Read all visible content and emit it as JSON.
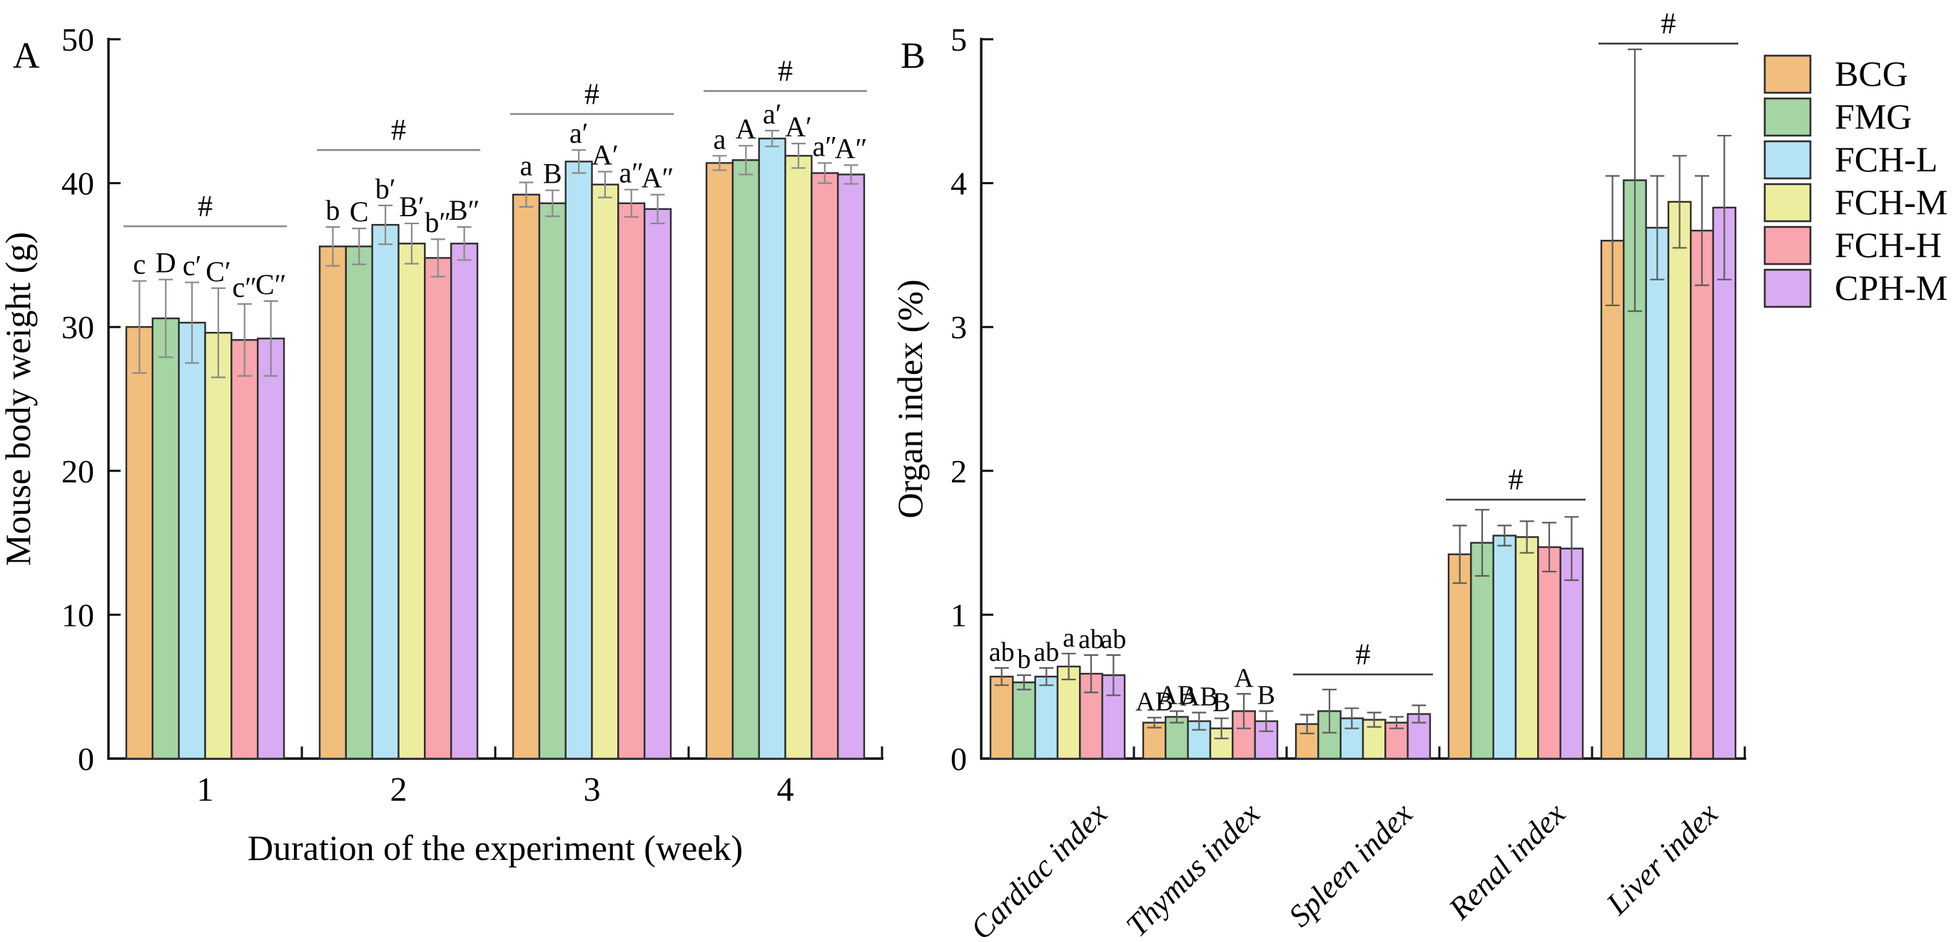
{
  "figure": {
    "background": "#ffffff",
    "description": "Two-panel bar figure: mouse body weight over time and organ indices for six treatment groups"
  },
  "palette": {
    "bar_edge": "#2e2e2e",
    "axis": "#111111",
    "error_bar_panel_a": "#8a8a8a",
    "error_bar_panel_b": "#5c5c5c",
    "bracket_panel_a": "#8c8c8c",
    "bracket_panel_b": "#3c3c3c",
    "text": "#000000"
  },
  "legend": {
    "entries": [
      {
        "label": "BCG",
        "color": "#F2BE7D"
      },
      {
        "label": "FMG",
        "color": "#A5D4A5"
      },
      {
        "label": "FCH-L",
        "color": "#B5E3F6"
      },
      {
        "label": "FCH-M",
        "color": "#EDEDA0"
      },
      {
        "label": "FCH-H",
        "color": "#F8A5AE"
      },
      {
        "label": "CPH-M",
        "color": "#D9ABF2"
      }
    ]
  },
  "chart_data": [
    {
      "id": "panel-a",
      "type": "bar",
      "panel_label": "A",
      "title": "",
      "xlabel": "Duration of the experiment (week)",
      "ylabel": "Mouse body weight (g)",
      "ylim": [
        0,
        50
      ],
      "yticks": [
        0,
        10,
        20,
        30,
        40,
        50
      ],
      "grid": false,
      "legend_position": "outside-right",
      "categories": [
        "1",
        "2",
        "3",
        "4"
      ],
      "category_style": "horizontal",
      "series": [
        {
          "name": "BCG",
          "values": [
            30.0,
            35.6,
            39.2,
            41.4
          ],
          "errors": [
            3.2,
            1.35,
            0.85,
            0.5
          ],
          "sig_labels": [
            "c",
            "b",
            "a",
            "a"
          ]
        },
        {
          "name": "FMG",
          "values": [
            30.6,
            35.6,
            38.6,
            41.6
          ],
          "errors": [
            2.7,
            1.25,
            0.9,
            1.0
          ],
          "sig_labels": [
            "D",
            "C",
            "B",
            "A"
          ]
        },
        {
          "name": "FCH-L",
          "values": [
            30.3,
            37.1,
            41.5,
            43.1
          ],
          "errors": [
            2.8,
            1.35,
            0.8,
            0.55
          ],
          "sig_labels": [
            "c′",
            "b′",
            "a′",
            "a′"
          ]
        },
        {
          "name": "FCH-M",
          "values": [
            29.6,
            35.8,
            39.9,
            41.9
          ],
          "errors": [
            3.1,
            1.4,
            0.9,
            0.85
          ],
          "sig_labels": [
            "C′",
            "B′",
            "A′",
            "A′"
          ]
        },
        {
          "name": "FCH-H",
          "values": [
            29.1,
            34.8,
            38.6,
            40.7
          ],
          "errors": [
            2.5,
            1.3,
            0.95,
            0.7
          ],
          "sig_labels": [
            "c″",
            "b″",
            "a″",
            "a″"
          ]
        },
        {
          "name": "CPH-M",
          "values": [
            29.2,
            35.8,
            38.2,
            40.6
          ],
          "errors": [
            2.6,
            1.15,
            1.0,
            0.65
          ],
          "sig_labels": [
            "C″",
            "B″",
            "A″",
            "A″"
          ]
        }
      ],
      "significance_brackets": [
        {
          "group": 0,
          "y": 37.0,
          "label": "#"
        },
        {
          "group": 1,
          "y": 42.3,
          "label": "#"
        },
        {
          "group": 2,
          "y": 44.8,
          "label": "#"
        },
        {
          "group": 3,
          "y": 46.4,
          "label": "#"
        }
      ]
    },
    {
      "id": "panel-b",
      "type": "bar",
      "panel_label": "B",
      "title": "",
      "xlabel": "",
      "ylabel": "Organ index (%)",
      "ylim": [
        0,
        5
      ],
      "yticks": [
        0,
        1,
        2,
        3,
        4,
        5
      ],
      "grid": false,
      "legend_position": "outside-right",
      "categories": [
        "Cardiac index",
        "Thymus index",
        "Spleen index",
        "Renal index",
        "Liver index"
      ],
      "category_style": "rotated-italic",
      "series": [
        {
          "name": "BCG",
          "values": [
            0.57,
            0.25,
            0.24,
            1.42,
            3.6
          ],
          "errors": [
            0.06,
            0.035,
            0.065,
            0.2,
            0.45
          ],
          "sig_labels": [
            "ab",
            "AB",
            "",
            "",
            ""
          ]
        },
        {
          "name": "FMG",
          "values": [
            0.53,
            0.29,
            0.33,
            1.5,
            4.02
          ],
          "errors": [
            0.05,
            0.04,
            0.15,
            0.23,
            0.91
          ],
          "sig_labels": [
            "b",
            "AB",
            "",
            "",
            ""
          ]
        },
        {
          "name": "FCH-L",
          "values": [
            0.57,
            0.26,
            0.28,
            1.55,
            3.69
          ],
          "errors": [
            0.06,
            0.06,
            0.07,
            0.07,
            0.36
          ],
          "sig_labels": [
            "ab",
            "AB",
            "",
            "",
            ""
          ]
        },
        {
          "name": "FCH-M",
          "values": [
            0.64,
            0.21,
            0.27,
            1.54,
            3.87
          ],
          "errors": [
            0.09,
            0.07,
            0.05,
            0.11,
            0.32
          ],
          "sig_labels": [
            "a",
            "B",
            "",
            "",
            ""
          ]
        },
        {
          "name": "FCH-H",
          "values": [
            0.59,
            0.33,
            0.25,
            1.47,
            3.67
          ],
          "errors": [
            0.13,
            0.12,
            0.04,
            0.17,
            0.38
          ],
          "sig_labels": [
            "ab",
            "A",
            "",
            "",
            ""
          ]
        },
        {
          "name": "CPH-M",
          "values": [
            0.58,
            0.26,
            0.31,
            1.46,
            3.83
          ],
          "errors": [
            0.14,
            0.07,
            0.06,
            0.22,
            0.5
          ],
          "sig_labels": [
            "ab",
            "B",
            "",
            "",
            ""
          ]
        }
      ],
      "significance_brackets": [
        {
          "group": 2,
          "y": 0.585,
          "label": "#"
        },
        {
          "group": 3,
          "y": 1.8,
          "label": "#"
        },
        {
          "group": 4,
          "y": 4.97,
          "label": "#"
        }
      ]
    }
  ]
}
